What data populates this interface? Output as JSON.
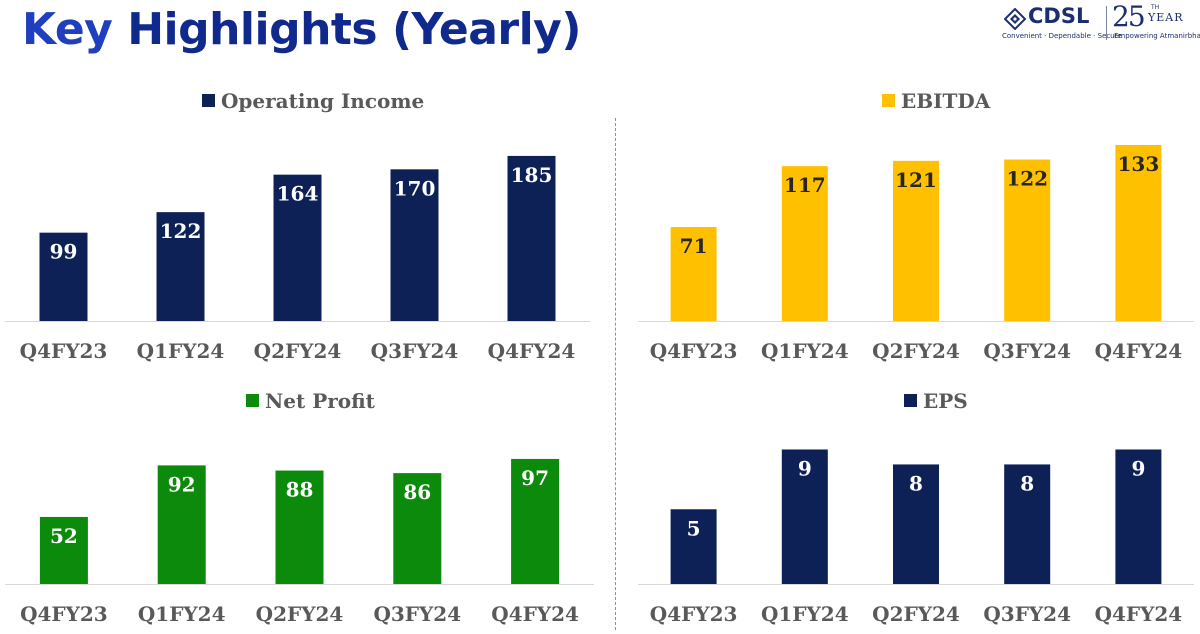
{
  "title": {
    "part1": "Key",
    "part2": "Highlights (Yearly)"
  },
  "logo": {
    "brand": "CDSL",
    "tagline": "Convenient · Dependable · Secure",
    "anniversary_number": "25",
    "anniversary_superscript": "TH",
    "anniversary_word": "YEAR",
    "anniversary_tagline": "Empowering Atmanirbharta",
    "mark_icon": "cdsl-diamond-icon"
  },
  "colors": {
    "title_key": "#1f3fbf",
    "title_rest": "#0f2a8c",
    "navy": "#0d2157",
    "gold": "#ffc000",
    "green": "#0b8a0b",
    "divider": "#5a9fd6"
  },
  "chart_data": [
    {
      "type": "bar",
      "title": "Operating Income",
      "categories": [
        "Q4FY23",
        "Q1FY24",
        "Q2FY24",
        "Q3FY24",
        "Q4FY24"
      ],
      "series": [
        {
          "name": "Operating Income",
          "values": [
            99,
            122,
            164,
            170,
            185
          ]
        }
      ],
      "color": "#0d2157",
      "label_color": "#ffffff",
      "ylim": [
        0,
        195
      ]
    },
    {
      "type": "bar",
      "title": "EBITDA",
      "categories": [
        "Q4FY23",
        "Q1FY24",
        "Q2FY24",
        "Q3FY24",
        "Q4FY24"
      ],
      "series": [
        {
          "name": "EBITDA",
          "values": [
            71,
            117,
            121,
            122,
            133
          ]
        }
      ],
      "color": "#ffc000",
      "label_color": "#262626",
      "ylim": [
        0,
        136
      ]
    },
    {
      "type": "bar",
      "title": "Net Profit",
      "categories": [
        "Q4FY23",
        "Q1FY24",
        "Q2FY24",
        "Q3FY24",
        "Q4FY24"
      ],
      "series": [
        {
          "name": "Net Profit",
          "values": [
            52,
            92,
            88,
            86,
            97
          ]
        }
      ],
      "color": "#0b8a0b",
      "label_color": "#ffffff",
      "ylim": [
        0,
        121
      ]
    },
    {
      "type": "bar",
      "title": "EPS",
      "categories": [
        "Q4FY23",
        "Q1FY24",
        "Q2FY24",
        "Q3FY24",
        "Q4FY24"
      ],
      "series": [
        {
          "name": "EPS",
          "values": [
            5,
            9,
            8,
            8,
            9
          ]
        }
      ],
      "color": "#0d2157",
      "label_color": "#ffffff",
      "ylim": [
        0,
        9.3
      ]
    }
  ]
}
